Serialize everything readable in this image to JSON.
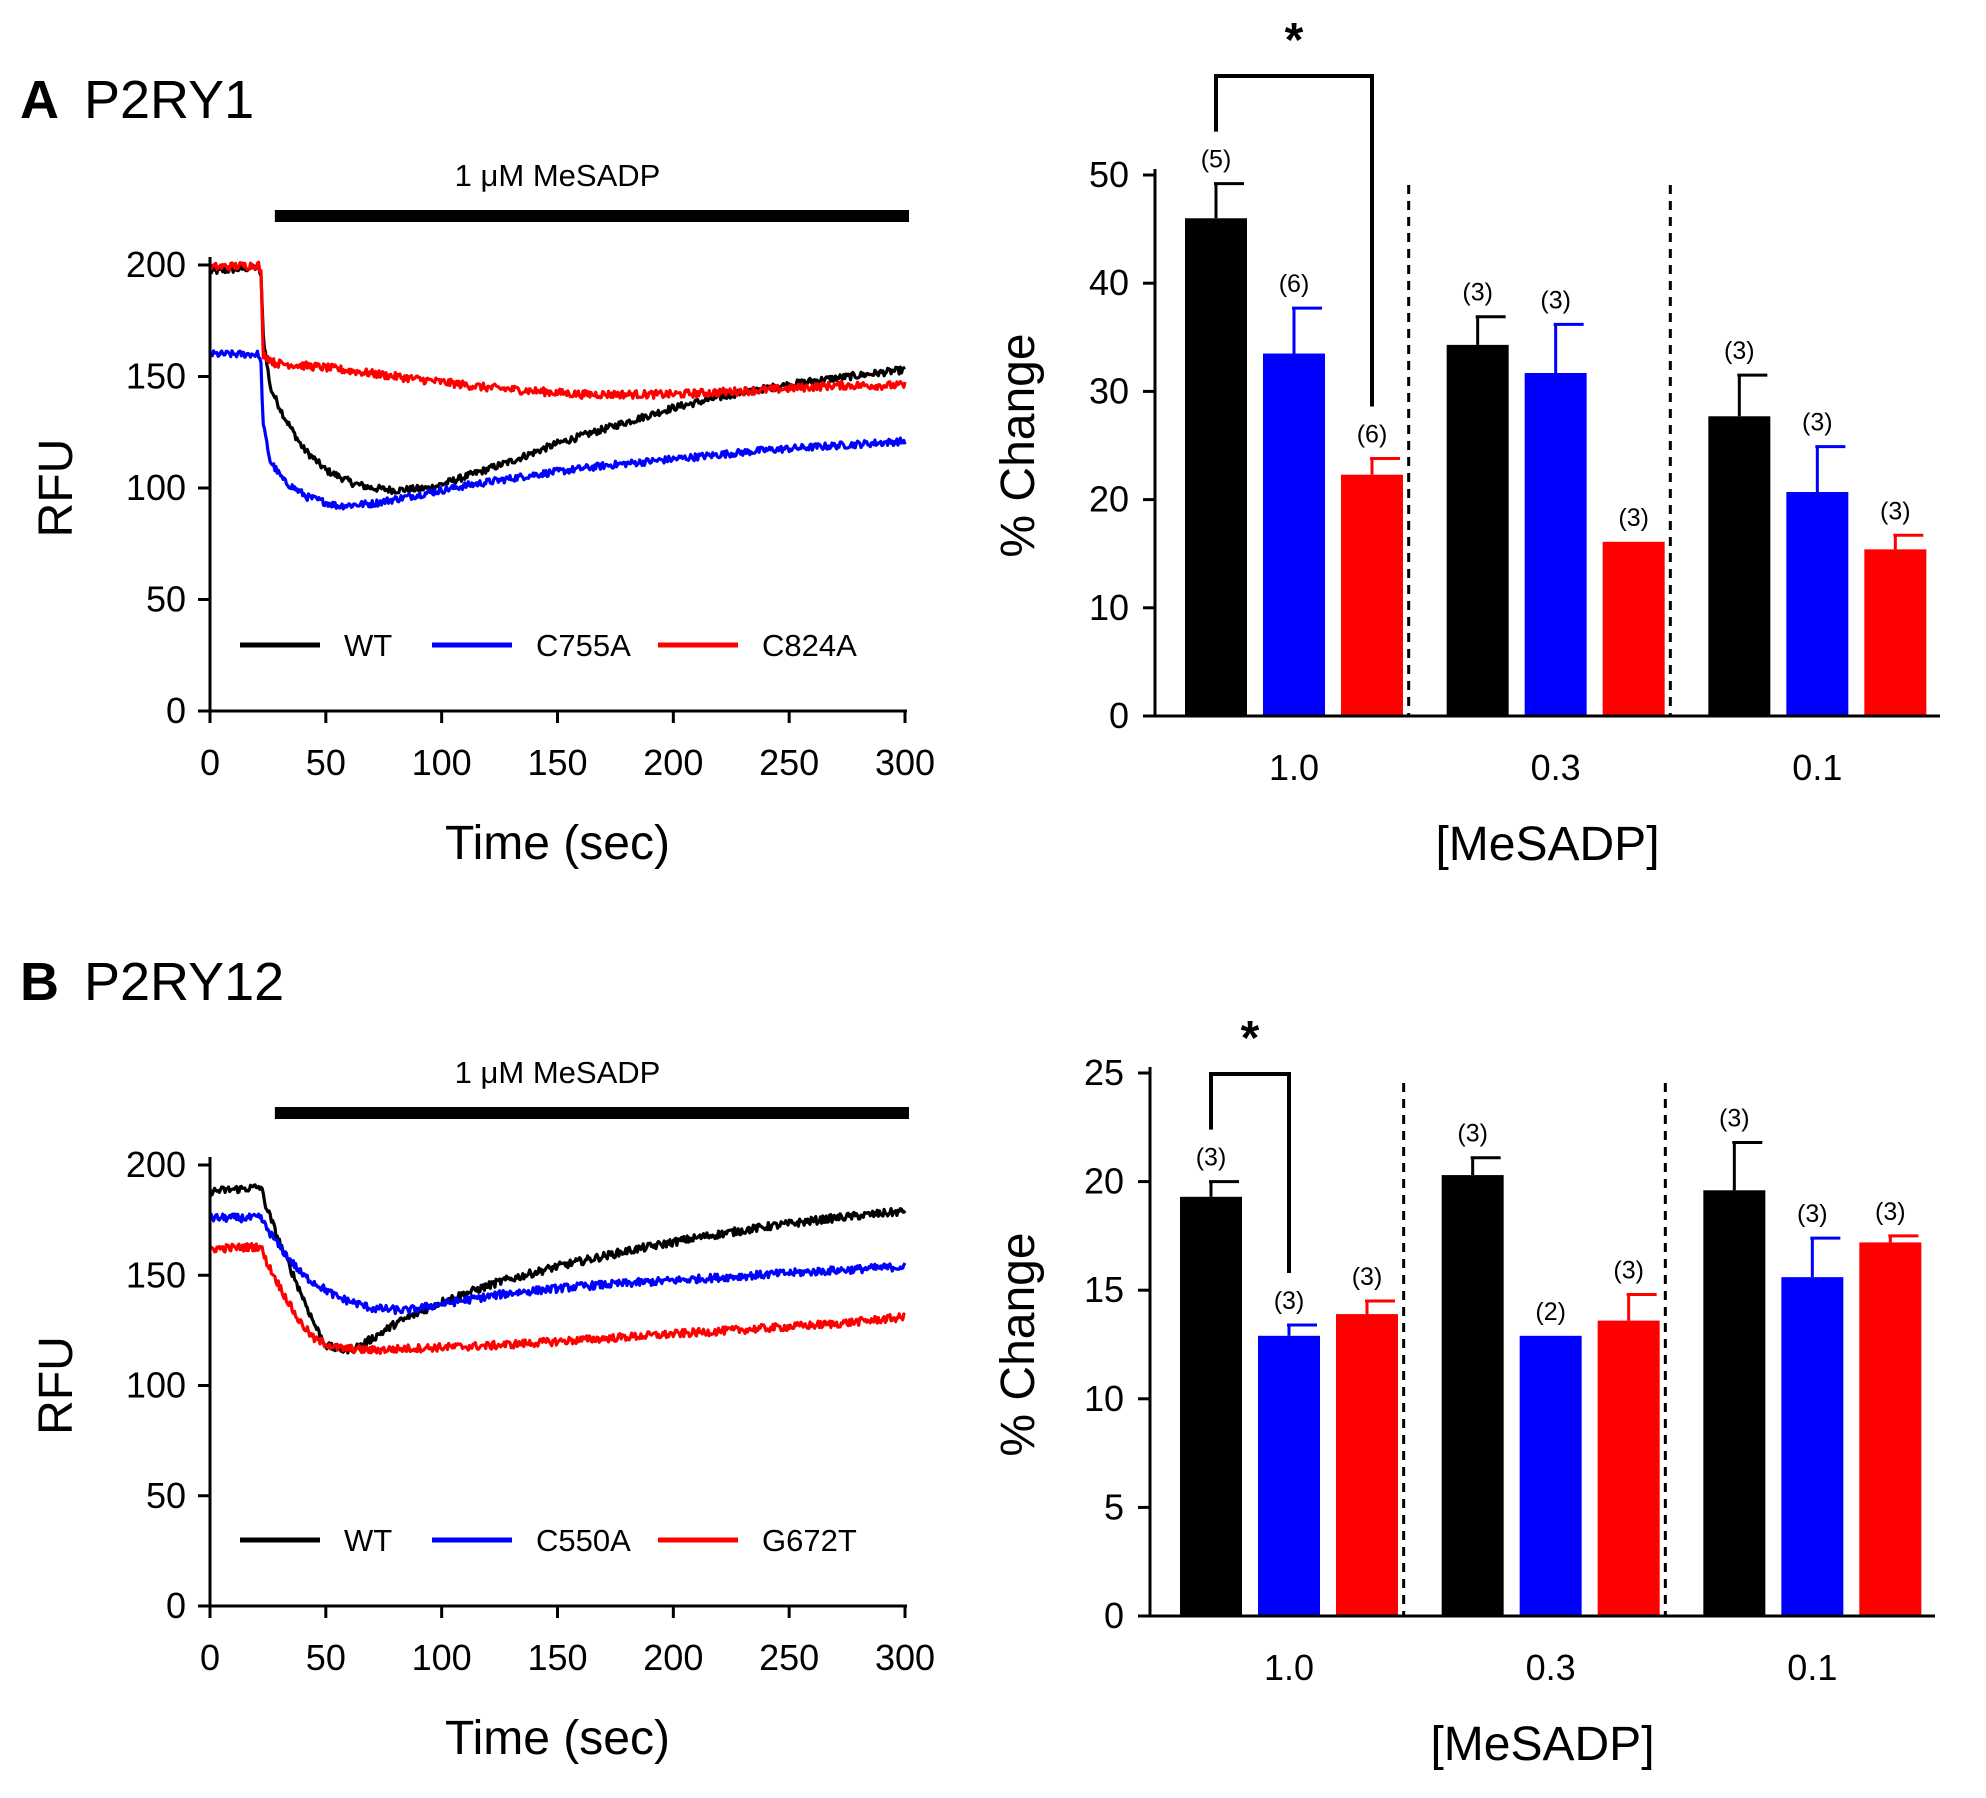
{
  "panels": {
    "a": {
      "letter": "A",
      "name": "P2RY1"
    },
    "b": {
      "letter": "B",
      "name": "P2RY12"
    }
  },
  "colors": {
    "WT": "#000000",
    "mutant1": "#0000ff",
    "mutant2": "#ff0000"
  },
  "chart_data": [
    {
      "id": "A-trace",
      "type": "line",
      "stimulus_label": "1 μM MeSADP",
      "stimulus_range": [
        28,
        300
      ],
      "xlabel": "Time (sec)",
      "ylabel": "RFU",
      "xlim": [
        0,
        300
      ],
      "ylim": [
        0,
        200
      ],
      "xticks": [
        0,
        50,
        100,
        150,
        200,
        250,
        300
      ],
      "yticks": [
        0,
        50,
        100,
        150,
        200
      ],
      "grid": false,
      "legend_position": "bottom",
      "series": [
        {
          "name": "WT",
          "color": "#000000",
          "noise": 1.6,
          "points": [
            [
              0,
              197
            ],
            [
              21,
              199
            ],
            [
              22,
              195
            ],
            [
              23,
              168
            ],
            [
              26,
              145
            ],
            [
              32,
              132
            ],
            [
              40,
              118
            ],
            [
              50,
              108
            ],
            [
              62,
              102
            ],
            [
              70,
              100
            ],
            [
              80,
              99
            ],
            [
              95,
              100
            ],
            [
              110,
              105
            ],
            [
              130,
              112
            ],
            [
              150,
              120
            ],
            [
              175,
              128
            ],
            [
              200,
              136
            ],
            [
              230,
              143
            ],
            [
              260,
              148
            ],
            [
              300,
              153
            ]
          ]
        },
        {
          "name": "C755A",
          "color": "#0000ff",
          "noise": 1.6,
          "points": [
            [
              0,
              160
            ],
            [
              21,
              160
            ],
            [
              22,
              155
            ],
            [
              23,
              128
            ],
            [
              26,
              112
            ],
            [
              32,
              103
            ],
            [
              42,
              96
            ],
            [
              55,
              92
            ],
            [
              70,
              93
            ],
            [
              90,
              97
            ],
            [
              110,
              101
            ],
            [
              140,
              106
            ],
            [
              170,
              110
            ],
            [
              200,
              113
            ],
            [
              240,
              117
            ],
            [
              270,
              119
            ],
            [
              300,
              121
            ]
          ]
        },
        {
          "name": "C824A",
          "color": "#ff0000",
          "noise": 1.8,
          "points": [
            [
              0,
              199
            ],
            [
              21,
              200
            ],
            [
              22,
              196
            ],
            [
              23,
              160
            ],
            [
              28,
              156
            ],
            [
              50,
              154
            ],
            [
              80,
              150
            ],
            [
              120,
              145
            ],
            [
              160,
              142
            ],
            [
              200,
              142
            ],
            [
              240,
              144
            ],
            [
              270,
              146
            ],
            [
              300,
              146
            ]
          ]
        }
      ]
    },
    {
      "id": "A-bar",
      "type": "bar",
      "xlabel": "[MeSADP]",
      "ylabel": "% Change",
      "categories": [
        "1.0",
        "0.3",
        "0.1"
      ],
      "ylim": [
        0,
        50
      ],
      "yticks": [
        0,
        10,
        20,
        30,
        40,
        50
      ],
      "series": [
        {
          "name": "WT",
          "color": "#000000",
          "values": [
            46,
            34.3,
            27.7
          ],
          "errors": [
            3.2,
            2.6,
            3.8
          ],
          "n": [
            "(5)",
            "(3)",
            "(3)"
          ]
        },
        {
          "name": "C755A",
          "color": "#0000ff",
          "values": [
            33.5,
            31.7,
            20.7
          ],
          "errors": [
            4.2,
            4.5,
            4.2
          ],
          "n": [
            "(6)",
            "(3)",
            "(3)"
          ]
        },
        {
          "name": "C824A",
          "color": "#ff0000",
          "values": [
            22.3,
            16.1,
            15.4
          ],
          "errors": [
            1.5,
            0,
            1.3
          ],
          "n": [
            "(6)",
            "(3)",
            "(3)"
          ]
        }
      ],
      "significance": {
        "category": "1.0",
        "between": [
          "WT",
          "C824A"
        ],
        "label": "*"
      }
    },
    {
      "id": "B-trace",
      "type": "line",
      "stimulus_label": "1 μM MeSADP",
      "stimulus_range": [
        28,
        300
      ],
      "xlabel": "Time (sec)",
      "ylabel": "RFU",
      "xlim": [
        0,
        300
      ],
      "ylim": [
        0,
        200
      ],
      "xticks": [
        0,
        50,
        100,
        150,
        200,
        250,
        300
      ],
      "yticks": [
        0,
        50,
        100,
        150,
        200
      ],
      "grid": false,
      "legend_position": "bottom",
      "series": [
        {
          "name": "WT",
          "color": "#000000",
          "noise": 1.8,
          "points": [
            [
              0,
              188
            ],
            [
              22,
              190
            ],
            [
              24,
              182
            ],
            [
              30,
              165
            ],
            [
              38,
              145
            ],
            [
              45,
              128
            ],
            [
              50,
              118
            ],
            [
              58,
              116
            ],
            [
              65,
              118
            ],
            [
              80,
              128
            ],
            [
              100,
              138
            ],
            [
              125,
              147
            ],
            [
              150,
              154
            ],
            [
              180,
              161
            ],
            [
              210,
              167
            ],
            [
              240,
              172
            ],
            [
              270,
              176
            ],
            [
              300,
              179
            ]
          ]
        },
        {
          "name": "C550A",
          "color": "#0000ff",
          "noise": 1.8,
          "points": [
            [
              0,
              176
            ],
            [
              22,
              176
            ],
            [
              24,
              172
            ],
            [
              30,
              163
            ],
            [
              40,
              150
            ],
            [
              55,
              140
            ],
            [
              70,
              135
            ],
            [
              85,
              134
            ],
            [
              100,
              137
            ],
            [
              130,
              142
            ],
            [
              160,
              145
            ],
            [
              190,
              147
            ],
            [
              220,
              149
            ],
            [
              250,
              151
            ],
            [
              300,
              154
            ]
          ]
        },
        {
          "name": "G672T",
          "color": "#ff0000",
          "noise": 1.8,
          "points": [
            [
              0,
              162
            ],
            [
              22,
              163
            ],
            [
              24,
              157
            ],
            [
              30,
              145
            ],
            [
              38,
              130
            ],
            [
              45,
              121
            ],
            [
              55,
              117
            ],
            [
              70,
              116
            ],
            [
              90,
              117
            ],
            [
              120,
              118
            ],
            [
              150,
              120
            ],
            [
              180,
              122
            ],
            [
              210,
              124
            ],
            [
              240,
              126
            ],
            [
              270,
              128
            ],
            [
              300,
              131
            ]
          ]
        }
      ]
    },
    {
      "id": "B-bar",
      "type": "bar",
      "xlabel": "[MeSADP]",
      "ylabel": "% Change",
      "categories": [
        "1.0",
        "0.3",
        "0.1"
      ],
      "ylim": [
        0,
        25
      ],
      "yticks": [
        0,
        5,
        10,
        15,
        20,
        25
      ],
      "series": [
        {
          "name": "WT",
          "color": "#000000",
          "values": [
            19.3,
            20.3,
            19.6
          ],
          "errors": [
            0.7,
            0.8,
            2.2
          ],
          "n": [
            "(3)",
            "(3)",
            "(3)"
          ]
        },
        {
          "name": "C550A",
          "color": "#0000ff",
          "values": [
            12.9,
            12.9,
            15.6
          ],
          "errors": [
            0.5,
            0,
            1.8
          ],
          "n": [
            "(3)",
            "(2)",
            "(3)"
          ]
        },
        {
          "name": "G672T",
          "color": "#ff0000",
          "values": [
            13.9,
            13.6,
            17.2
          ],
          "errors": [
            0.6,
            1.2,
            0.3
          ],
          "n": [
            "(3)",
            "(3)",
            "(3)"
          ]
        }
      ],
      "significance": {
        "category": "1.0",
        "between": [
          "WT",
          "C550A"
        ],
        "label": "*"
      }
    }
  ]
}
